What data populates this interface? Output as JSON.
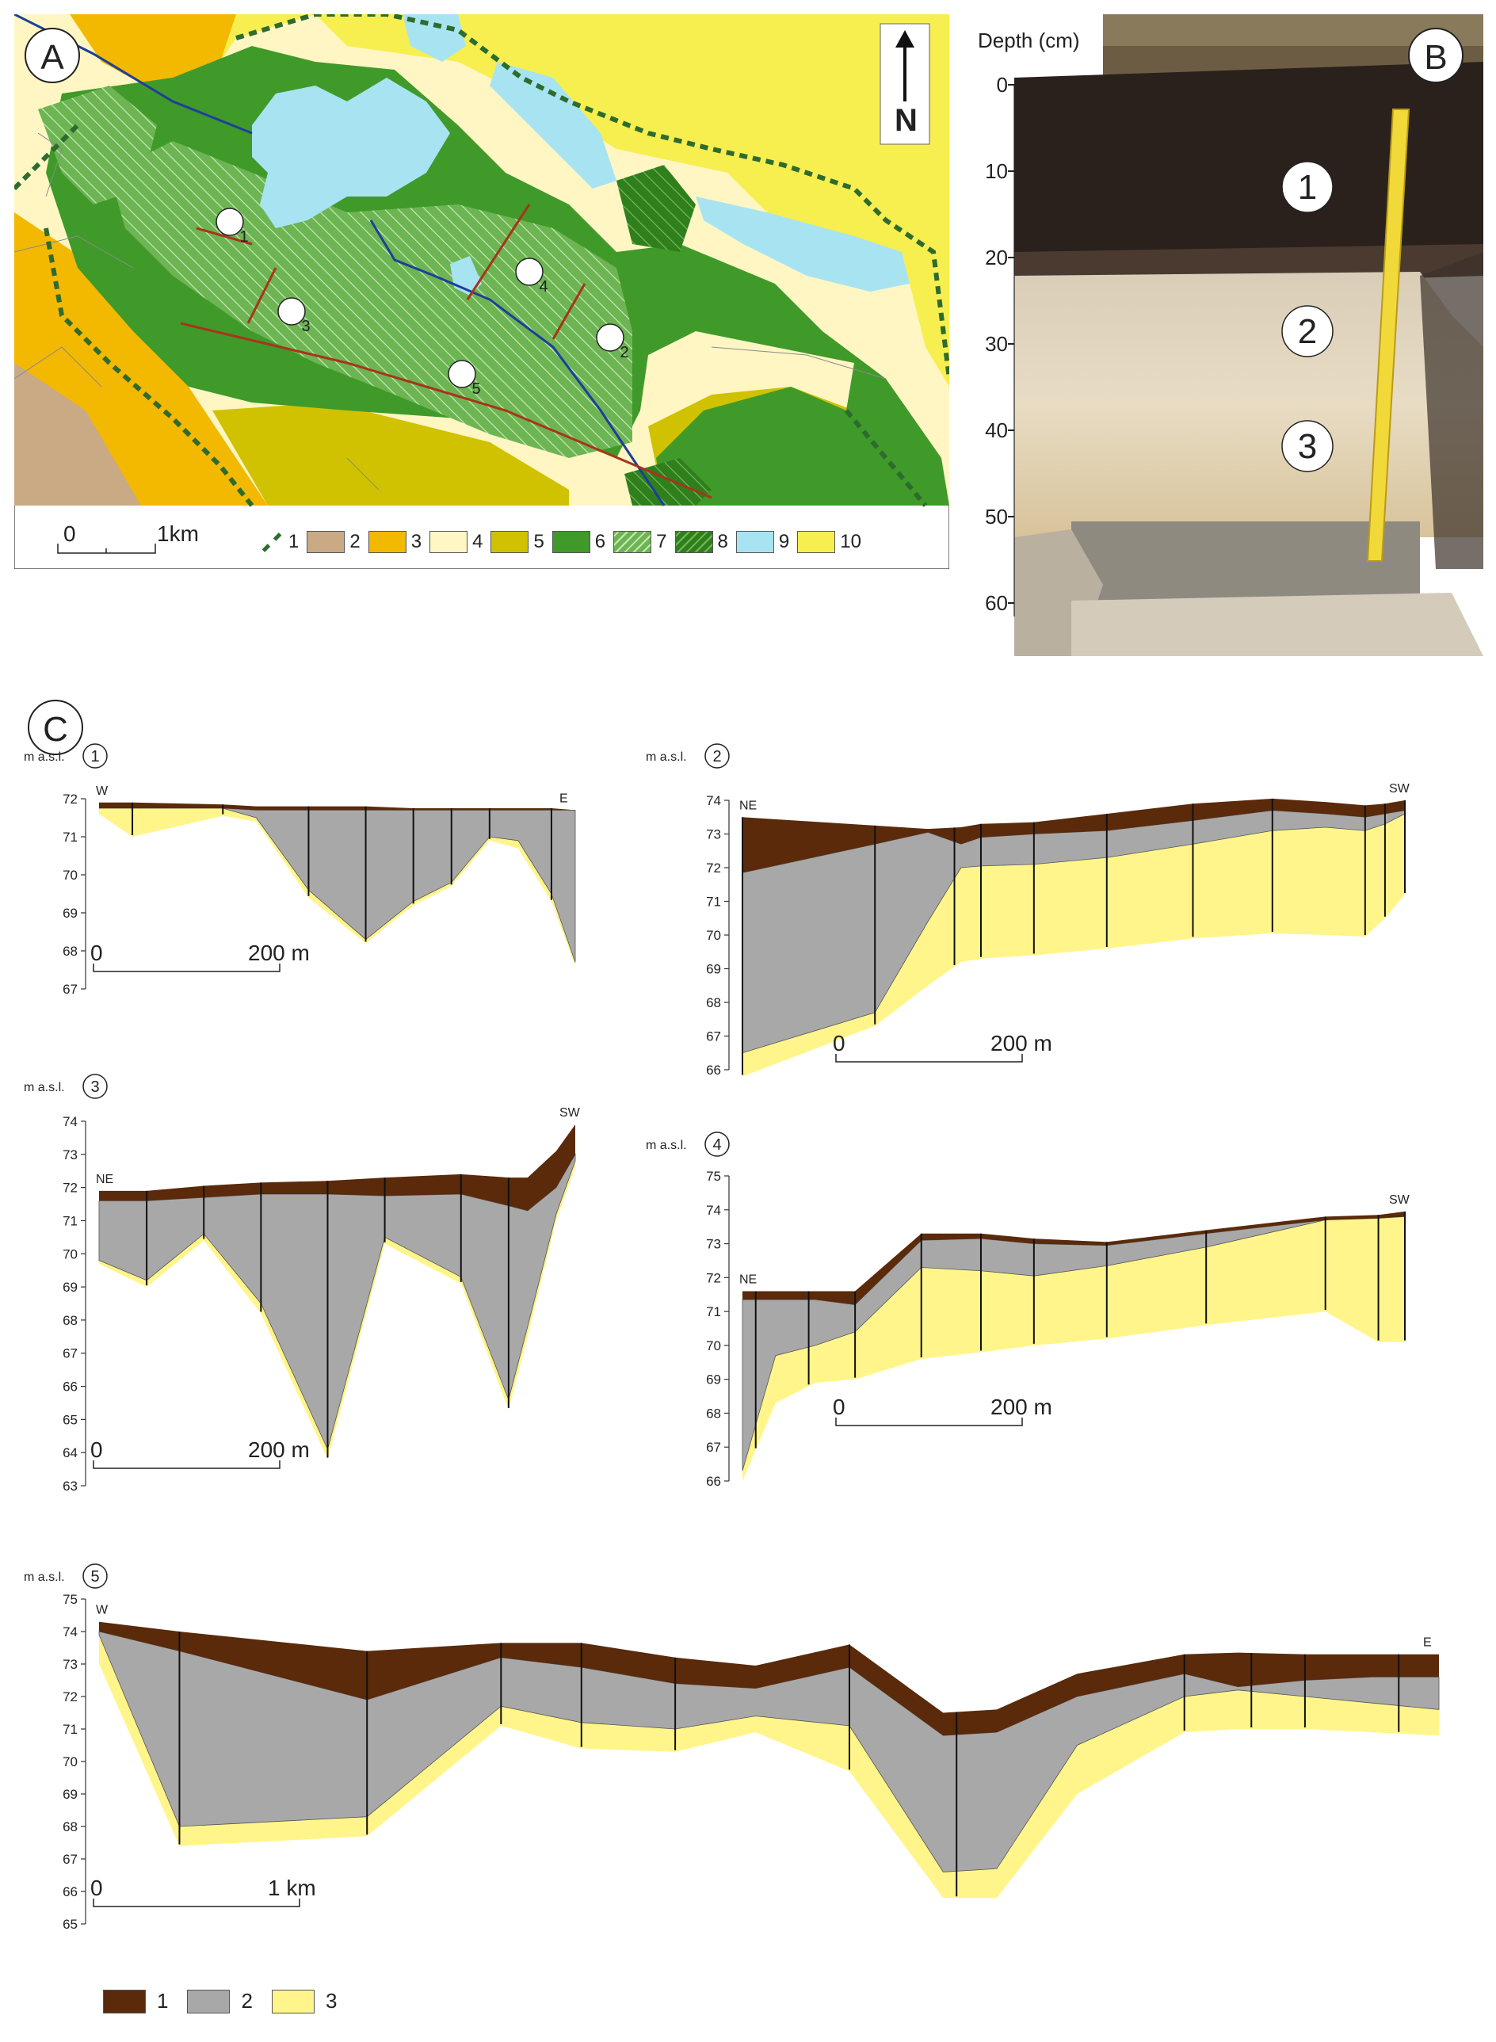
{
  "panels": {
    "A": {
      "label": "A",
      "north": "N",
      "scale": {
        "start": "0",
        "end": "1km"
      },
      "profile_markers": [
        "1",
        "2",
        "3",
        "4",
        "5"
      ],
      "legend": [
        {
          "num": "1",
          "kind": "dashed-border",
          "color": "#2e6b2e"
        },
        {
          "num": "2",
          "kind": "fill",
          "color": "#c9aa84"
        },
        {
          "num": "3",
          "kind": "fill",
          "color": "#f3b800"
        },
        {
          "num": "4",
          "kind": "fill",
          "color": "#fff6c4"
        },
        {
          "num": "5",
          "kind": "fill",
          "color": "#d0c200"
        },
        {
          "num": "6",
          "kind": "fill",
          "color": "#3f9a2a"
        },
        {
          "num": "7",
          "kind": "hatch-light",
          "color": "#6cb552"
        },
        {
          "num": "8",
          "kind": "hatch-dark",
          "color": "#2f7f1d"
        },
        {
          "num": "9",
          "kind": "fill",
          "color": "#a8e3f2"
        },
        {
          "num": "10",
          "kind": "fill",
          "color": "#f7ef4f"
        }
      ]
    },
    "B": {
      "label": "B",
      "depth_axis_title": "Depth (cm)",
      "depth_ticks": [
        "0",
        "10",
        "20",
        "30",
        "40",
        "50",
        "60"
      ],
      "layer_markers": [
        "1",
        "2",
        "3"
      ]
    },
    "C": {
      "label": "C",
      "unit": "m a.s.l.",
      "legend": [
        {
          "num": "1",
          "color": "#5a2a0b"
        },
        {
          "num": "2",
          "color": "#a8a8a8"
        },
        {
          "num": "3",
          "color": "#fff58a"
        }
      ]
    }
  },
  "chart_data": [
    {
      "type": "area",
      "profile": "1",
      "ylabel": "m a.s.l.",
      "ylim": [
        67,
        72
      ],
      "yticks": [
        "72",
        "71",
        "70",
        "69",
        "68",
        "67"
      ],
      "dir_left": "W",
      "dir_right": "E",
      "scale": {
        "start": "0",
        "end": "200 m"
      },
      "stations": [
        0,
        0.07,
        0.26,
        0.33,
        0.44,
        0.56,
        0.66,
        0.74,
        0.82,
        0.88,
        0.95,
        1.0
      ],
      "surface": [
        71.9,
        71.9,
        71.85,
        71.8,
        71.8,
        71.8,
        71.75,
        71.75,
        71.75,
        71.75,
        71.75,
        71.7
      ],
      "peat_base": [
        71.75,
        71.75,
        71.75,
        71.7,
        71.7,
        71.7,
        71.7,
        71.7,
        71.7,
        71.7,
        71.7,
        71.7
      ],
      "gyttja_base": [
        71.75,
        71.75,
        71.75,
        71.5,
        69.6,
        68.3,
        69.3,
        69.8,
        71.0,
        70.9,
        69.5,
        67.7
      ],
      "sand_base": [
        71.6,
        71.0,
        71.55,
        71.4,
        69.4,
        68.2,
        69.2,
        69.7,
        70.9,
        70.7,
        69.3,
        67.6
      ],
      "cores": [
        0.07,
        0.26,
        0.44,
        0.56,
        0.66,
        0.74,
        0.82,
        0.95
      ]
    },
    {
      "type": "area",
      "profile": "2",
      "ylabel": "m a.s.l.",
      "ylim": [
        66,
        74
      ],
      "yticks": [
        "74",
        "73",
        "72",
        "71",
        "70",
        "69",
        "68",
        "67",
        "66"
      ],
      "dir_left": "NE",
      "dir_right": "SW",
      "scale": {
        "start": "0",
        "end": "200 m"
      },
      "stations": [
        0,
        0.2,
        0.28,
        0.33,
        0.36,
        0.44,
        0.55,
        0.68,
        0.8,
        0.88,
        0.94,
        0.97,
        1.0
      ],
      "surface": [
        73.5,
        73.25,
        73.15,
        73.2,
        73.3,
        73.35,
        73.6,
        73.9,
        74.05,
        73.95,
        73.85,
        73.9,
        74.0
      ],
      "peat_base": [
        71.85,
        72.7,
        73.05,
        72.7,
        72.9,
        73.0,
        73.1,
        73.4,
        73.7,
        73.6,
        73.5,
        73.6,
        73.7
      ],
      "gyttja_base": [
        66.5,
        67.7,
        70.4,
        72.0,
        72.05,
        72.1,
        72.3,
        72.7,
        73.1,
        73.2,
        73.1,
        73.3,
        73.6
      ],
      "sand_base": [
        65.8,
        67.3,
        68.5,
        69.2,
        69.3,
        69.4,
        69.6,
        69.9,
        70.05,
        70.0,
        69.95,
        70.5,
        71.2
      ],
      "cores": [
        0,
        0.2,
        0.32,
        0.36,
        0.44,
        0.55,
        0.68,
        0.8,
        0.94,
        0.97,
        1.0
      ]
    },
    {
      "type": "area",
      "profile": "3",
      "ylabel": "m a.s.l.",
      "ylim": [
        63,
        74
      ],
      "yticks": [
        "74",
        "73",
        "72",
        "71",
        "70",
        "69",
        "68",
        "67",
        "66",
        "65",
        "64",
        "63"
      ],
      "dir_left": "NE",
      "dir_right": "SW",
      "scale": {
        "start": "0",
        "end": "200 m"
      },
      "stations": [
        0,
        0.1,
        0.22,
        0.34,
        0.48,
        0.6,
        0.76,
        0.86,
        0.9,
        0.96,
        1.0
      ],
      "surface": [
        71.9,
        71.9,
        72.05,
        72.15,
        72.2,
        72.3,
        72.4,
        72.3,
        72.3,
        73.1,
        73.9
      ],
      "peat_base": [
        71.6,
        71.6,
        71.7,
        71.8,
        71.8,
        71.75,
        71.8,
        71.45,
        71.3,
        72.0,
        73.0
      ],
      "gyttja_base": [
        69.8,
        69.2,
        70.6,
        68.5,
        64.1,
        70.5,
        69.3,
        65.6,
        67.8,
        71.2,
        72.8
      ],
      "sand_base": [
        69.7,
        69.0,
        70.4,
        68.2,
        63.8,
        70.3,
        69.1,
        65.3,
        67.5,
        71.0,
        72.6
      ],
      "cores": [
        0.1,
        0.22,
        0.34,
        0.48,
        0.6,
        0.76,
        0.86
      ]
    },
    {
      "type": "area",
      "profile": "4",
      "ylabel": "m a.s.l.",
      "ylim": [
        66,
        75
      ],
      "yticks": [
        "75",
        "74",
        "73",
        "72",
        "71",
        "70",
        "69",
        "68",
        "67",
        "66"
      ],
      "dir_left": "NE",
      "dir_right": "SW",
      "scale": {
        "start": "0",
        "end": "200 m"
      },
      "stations": [
        0,
        0.05,
        0.11,
        0.17,
        0.27,
        0.36,
        0.44,
        0.55,
        0.7,
        0.88,
        0.96,
        1.0
      ],
      "surface": [
        71.6,
        71.6,
        71.6,
        71.6,
        73.3,
        73.3,
        73.15,
        73.05,
        73.4,
        73.8,
        73.85,
        73.95
      ],
      "peat_base": [
        71.35,
        71.35,
        71.35,
        71.2,
        73.1,
        73.15,
        73.0,
        72.95,
        73.3,
        73.7,
        73.75,
        73.8
      ],
      "gyttja_base": [
        66.3,
        69.7,
        70.0,
        70.4,
        72.3,
        72.2,
        72.05,
        72.35,
        72.9,
        73.7,
        73.75,
        73.8
      ],
      "sand_base": [
        66.0,
        68.3,
        68.9,
        69.0,
        69.6,
        69.8,
        70.0,
        70.2,
        70.6,
        71.0,
        70.1,
        70.1
      ],
      "cores": [
        0.02,
        0.1,
        0.17,
        0.27,
        0.36,
        0.44,
        0.55,
        0.7,
        0.88,
        0.96,
        1.0
      ]
    },
    {
      "type": "area",
      "profile": "5",
      "ylabel": "m a.s.l.",
      "ylim": [
        65,
        75
      ],
      "yticks": [
        "75",
        "74",
        "73",
        "72",
        "71",
        "70",
        "69",
        "68",
        "67",
        "66",
        "65"
      ],
      "dir_left": "W",
      "dir_right": "E",
      "scale": {
        "start": "0",
        "end": "1 km"
      },
      "stations": [
        0,
        0.06,
        0.2,
        0.3,
        0.36,
        0.43,
        0.49,
        0.56,
        0.63,
        0.67,
        0.73,
        0.81,
        0.85,
        0.9,
        0.95,
        1.0
      ],
      "surface": [
        74.3,
        74.0,
        73.4,
        73.65,
        73.65,
        73.2,
        72.95,
        73.6,
        71.5,
        71.6,
        72.7,
        73.3,
        73.35,
        73.3,
        73.3,
        73.3
      ],
      "peat_base": [
        74.0,
        73.4,
        71.9,
        73.2,
        72.9,
        72.4,
        72.25,
        72.9,
        70.8,
        70.9,
        72.0,
        72.7,
        72.3,
        72.5,
        72.6,
        72.6
      ],
      "gyttja_base": [
        73.9,
        68.0,
        68.3,
        71.7,
        71.2,
        71.0,
        71.4,
        71.1,
        66.6,
        66.7,
        70.5,
        72.0,
        72.2,
        72.0,
        71.8,
        71.6
      ],
      "sand_base": [
        73.0,
        67.4,
        67.7,
        71.1,
        70.4,
        70.3,
        70.9,
        69.7,
        65.8,
        65.8,
        69.0,
        70.9,
        71.0,
        71.0,
        70.9,
        70.8
      ],
      "cores": [
        0.06,
        0.2,
        0.3,
        0.36,
        0.43,
        0.56,
        0.64,
        0.81,
        0.86,
        0.9,
        0.97
      ]
    }
  ]
}
